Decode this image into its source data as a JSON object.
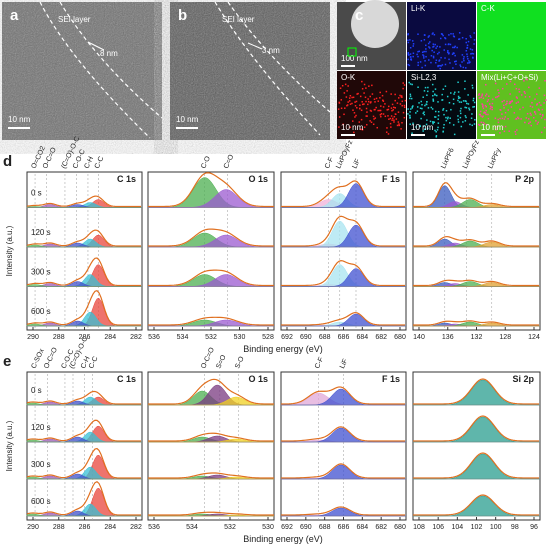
{
  "a": {
    "label": "a",
    "layer": "SEI layer",
    "thickness": "8 nm",
    "scale": "10 nm"
  },
  "b": {
    "label": "b",
    "layer": "SEI layer",
    "thickness": "3 nm",
    "scale": "10 nm"
  },
  "c": {
    "label": "c",
    "tiles": [
      {
        "scale": "100 nm"
      },
      {
        "name": "Li-K"
      },
      {
        "name": "C-K"
      },
      {
        "name": "O-K",
        "scale": "10 nm"
      },
      {
        "name": "Si-L2,3",
        "scale": "10 nm"
      },
      {
        "name": "Mix(Li+C+O+Si)",
        "scale": "10 nm"
      }
    ]
  },
  "d": {
    "label": "d",
    "y_label": "Intensity (a.u.)",
    "x_label": "Binding energy (eV)",
    "times": [
      "0 s",
      "120 s",
      "300 s",
      "600 s"
    ],
    "plots": [
      {
        "element": "C 1s",
        "peaks": [
          "O=CO2",
          "O-C=O",
          "(C=O)-O-C",
          "C-O-C",
          "C-H",
          "C-C"
        ],
        "ticks": [
          "290",
          "288",
          "286",
          "284",
          "282"
        ]
      },
      {
        "element": "O 1s",
        "peaks": [
          "C-O",
          "C=O"
        ],
        "ticks": [
          "536",
          "534",
          "532",
          "530",
          "528"
        ]
      },
      {
        "element": "F 1s",
        "peaks": [
          "C-F",
          "LixPOyFz",
          "LiF"
        ],
        "ticks": [
          "692",
          "690",
          "688",
          "686",
          "684",
          "682",
          "680"
        ]
      },
      {
        "element": "P 2p",
        "peaks": [
          "LixPF6",
          "LixPOyFz",
          "LixPFy"
        ],
        "ticks": [
          "140",
          "136",
          "132",
          "128",
          "124"
        ]
      }
    ]
  },
  "e": {
    "label": "e",
    "y_label": "Intensity (a.u.)",
    "x_label": "Binding energy (eV)",
    "times": [
      "0 s",
      "120 s",
      "300 s",
      "600 s"
    ],
    "plots": [
      {
        "element": "C 1s",
        "peaks": [
          "C-SOx",
          "O-C=O",
          "C-O-C",
          "(C=O)-O-C",
          "C-H",
          "C-C"
        ],
        "ticks": [
          "290",
          "288",
          "286",
          "284",
          "282"
        ]
      },
      {
        "element": "O 1s",
        "peaks": [
          "O-C=O",
          "S=O",
          "S-O"
        ],
        "ticks": [
          "536",
          "534",
          "532",
          "530"
        ]
      },
      {
        "element": "F 1s",
        "peaks": [
          "C-F",
          "LiF"
        ],
        "ticks": [
          "692",
          "690",
          "688",
          "686",
          "684",
          "682",
          "680"
        ]
      },
      {
        "element": "Si 2p",
        "ticks": [
          "108",
          "106",
          "104",
          "102",
          "100",
          "98",
          "96"
        ]
      }
    ]
  }
}
